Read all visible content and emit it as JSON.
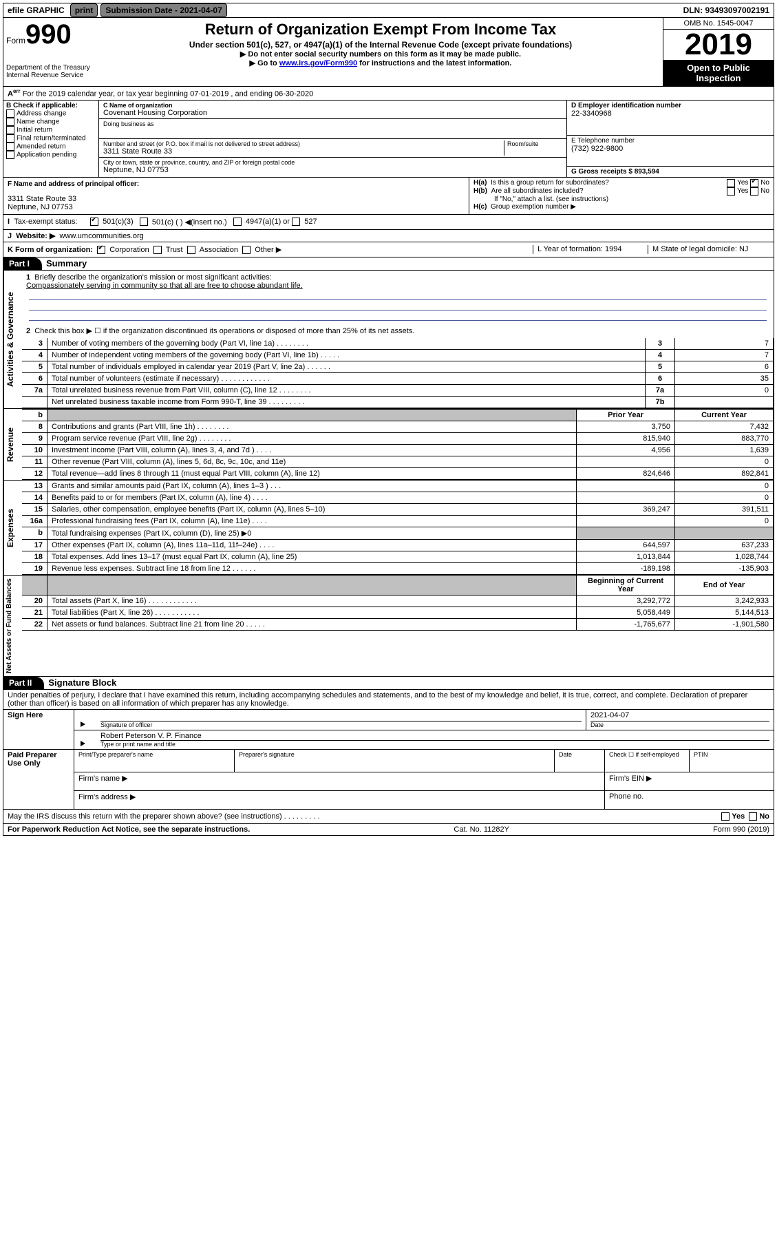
{
  "topbar": {
    "efile": "efile GRAPHIC",
    "print": "print",
    "sub_label": "Submission Date - 2021-04-07",
    "dln": "DLN: 93493097002191"
  },
  "header": {
    "form_prefix": "Form",
    "form_num": "990",
    "dept1": "Department of the Treasury",
    "dept2": "Internal Revenue Service",
    "title": "Return of Organization Exempt From Income Tax",
    "sub1": "Under section 501(c), 527, or 4947(a)(1) of the Internal Revenue Code (except private foundations)",
    "sub2": "▶ Do not enter social security numbers on this form as it may be made public.",
    "sub3a": "▶ Go to ",
    "sub3_link": "www.irs.gov/Form990",
    "sub3b": " for instructions and the latest information.",
    "omb": "OMB No. 1545-0047",
    "year": "2019",
    "open": "Open to Public Inspection"
  },
  "lineA": "For the 2019 calendar year, or tax year beginning 07-01-2019   , and ending 06-30-2020",
  "boxB": {
    "label": "B Check if applicable:",
    "items": [
      "Address change",
      "Name change",
      "Initial return",
      "Final return/terminated",
      "Amended return",
      "Application pending"
    ]
  },
  "boxC": {
    "label": "C Name of organization",
    "name": "Covenant Housing Corporation",
    "dba": "Doing business as",
    "addr_label": "Number and street (or P.O. box if mail is not delivered to street address)",
    "room": "Room/suite",
    "addr": "3311 State Route 33",
    "city_label": "City or town, state or province, country, and ZIP or foreign postal code",
    "city": "Neptune, NJ  07753"
  },
  "boxD": {
    "label": "D Employer identification number",
    "val": "22-3340968"
  },
  "boxE": {
    "label": "E Telephone number",
    "val": "(732) 922-9800"
  },
  "boxG": {
    "label": "G Gross receipts $ 893,594"
  },
  "boxF": {
    "label": "F  Name and address of principal officer:",
    "l1": "3311 State Route 33",
    "l2": "Neptune, NJ  07753"
  },
  "boxH": {
    "a": "Is this a group return for subordinates?",
    "b": "Are all subordinates included?",
    "c": "Group exemption number ▶",
    "note": "If \"No,\" attach a list. (see instructions)",
    "yes": "Yes",
    "no": "No"
  },
  "lineI": {
    "label": "Tax-exempt status:",
    "o1": "501(c)(3)",
    "o2": "501(c) (  ) ◀(insert no.)",
    "o3": "4947(a)(1) or",
    "o4": "527"
  },
  "lineJ": {
    "label": "Website: ▶",
    "val": "www.umcommunities.org"
  },
  "lineK": {
    "label": "K Form of organization:",
    "o1": "Corporation",
    "o2": "Trust",
    "o3": "Association",
    "o4": "Other ▶"
  },
  "lineL": {
    "label": "L Year of formation: 1994"
  },
  "lineM": {
    "label": "M State of legal domicile: NJ"
  },
  "part1": {
    "tag": "Part I",
    "title": "Summary"
  },
  "sections": {
    "s1": "Activities & Governance",
    "s2": "Revenue",
    "s3": "Expenses",
    "s4": "Net Assets or Fund Balances"
  },
  "line1": {
    "label": "Briefly describe the organization's mission or most significant activities:",
    "val": "Compassionately serving in community so that all are free to choose abundant life."
  },
  "line2": "Check this box ▶ ☐  if the organization discontinued its operations or disposed of more than 25% of its net assets.",
  "cols": {
    "py": "Prior Year",
    "cy": "Current Year",
    "by": "Beginning of Current Year",
    "ey": "End of Year"
  },
  "rows": [
    {
      "n": "3",
      "d": "Number of voting members of the governing body (Part VI, line 1a)   .   .   .   .   .   .   .   .",
      "c": "3",
      "v": "7"
    },
    {
      "n": "4",
      "d": "Number of independent voting members of the governing body (Part VI, line 1b)   .   .   .   .   .",
      "c": "4",
      "v": "7"
    },
    {
      "n": "5",
      "d": "Total number of individuals employed in calendar year 2019 (Part V, line 2a)   .   .   .   .   .   .",
      "c": "5",
      "v": "6"
    },
    {
      "n": "6",
      "d": "Total number of volunteers (estimate if necessary)   .   .   .   .   .   .   .   .   .   .   .   .",
      "c": "6",
      "v": "35"
    },
    {
      "n": "7a",
      "d": "Total unrelated business revenue from Part VIII, column (C), line 12   .   .   .   .   .   .   .   .",
      "c": "7a",
      "v": "0"
    },
    {
      "n": "",
      "d": "Net unrelated business taxable income from Form 990-T, line 39   .   .   .   .   .   .   .   .   .",
      "c": "7b",
      "v": ""
    }
  ],
  "revRows": [
    {
      "n": "8",
      "d": "Contributions and grants (Part VIII, line 1h)   .   .   .   .   .   .   .   .",
      "p": "3,750",
      "c": "7,432"
    },
    {
      "n": "9",
      "d": "Program service revenue (Part VIII, line 2g)   .   .   .   .   .   .   .   .",
      "p": "815,940",
      "c": "883,770"
    },
    {
      "n": "10",
      "d": "Investment income (Part VIII, column (A), lines 3, 4, and 7d )   .   .   .   .",
      "p": "4,956",
      "c": "1,639"
    },
    {
      "n": "11",
      "d": "Other revenue (Part VIII, column (A), lines 5, 6d, 8c, 9c, 10c, and 11e)",
      "p": "",
      "c": "0"
    },
    {
      "n": "12",
      "d": "Total revenue—add lines 8 through 11 (must equal Part VIII, column (A), line 12)",
      "p": "824,646",
      "c": "892,841"
    }
  ],
  "expRows": [
    {
      "n": "13",
      "d": "Grants and similar amounts paid (Part IX, column (A), lines 1–3 )   .   .   .",
      "p": "",
      "c": "0"
    },
    {
      "n": "14",
      "d": "Benefits paid to or for members (Part IX, column (A), line 4)   .   .   .   .",
      "p": "",
      "c": "0"
    },
    {
      "n": "15",
      "d": "Salaries, other compensation, employee benefits (Part IX, column (A), lines 5–10)",
      "p": "369,247",
      "c": "391,511"
    },
    {
      "n": "16a",
      "d": "Professional fundraising fees (Part IX, column (A), line 11e)   .   .   .   .",
      "p": "",
      "c": "0"
    },
    {
      "n": "b",
      "d": "Total fundraising expenses (Part IX, column (D), line 25) ▶0",
      "p": "grey",
      "c": "grey"
    },
    {
      "n": "17",
      "d": "Other expenses (Part IX, column (A), lines 11a–11d, 11f–24e)   .   .   .   .",
      "p": "644,597",
      "c": "637,233"
    },
    {
      "n": "18",
      "d": "Total expenses. Add lines 13–17 (must equal Part IX, column (A), line 25)",
      "p": "1,013,844",
      "c": "1,028,744"
    },
    {
      "n": "19",
      "d": "Revenue less expenses. Subtract line 18 from line 12   .   .   .   .   .   .",
      "p": "-189,198",
      "c": "-135,903"
    }
  ],
  "netRows": [
    {
      "n": "20",
      "d": "Total assets (Part X, line 16)   .   .   .   .   .   .   .   .   .   .   .   .",
      "p": "3,292,772",
      "c": "3,242,933"
    },
    {
      "n": "21",
      "d": "Total liabilities (Part X, line 26)   .   .   .   .   .   .   .   .   .   .   .",
      "p": "5,058,449",
      "c": "5,144,513"
    },
    {
      "n": "22",
      "d": "Net assets or fund balances. Subtract line 21 from line 20   .   .   .   .   .",
      "p": "-1,765,677",
      "c": "-1,901,580"
    }
  ],
  "part2": {
    "tag": "Part II",
    "title": "Signature Block"
  },
  "sigText": "Under penalties of perjury, I declare that I have examined this return, including accompanying schedules and statements, and to the best of my knowledge and belief, it is true, correct, and complete. Declaration of preparer (other than officer) is based on all information of which preparer has any knowledge.",
  "sign": {
    "here": "Sign Here",
    "date": "2021-04-07",
    "sig_label": "Signature of officer",
    "date_label": "Date",
    "name": "Robert Peterson  V. P. Finance",
    "name_label": "Type or print name and title"
  },
  "prep": {
    "title": "Paid Preparer Use Only",
    "h1": "Print/Type preparer's name",
    "h2": "Preparer's signature",
    "h3": "Date",
    "h4": "Check ☐ if self-employed",
    "h5": "PTIN",
    "firm_name": "Firm's name   ▶",
    "firm_ein": "Firm's EIN ▶",
    "firm_addr": "Firm's address ▶",
    "phone": "Phone no."
  },
  "discuss": "May the IRS discuss this return with the preparer shown above? (see instructions)    .   .   .   .   .   .   .   .   .",
  "foot": {
    "l": "For Paperwork Reduction Act Notice, see the separate instructions.",
    "m": "Cat. No. 11282Y",
    "r": "Form 990 (2019)"
  }
}
